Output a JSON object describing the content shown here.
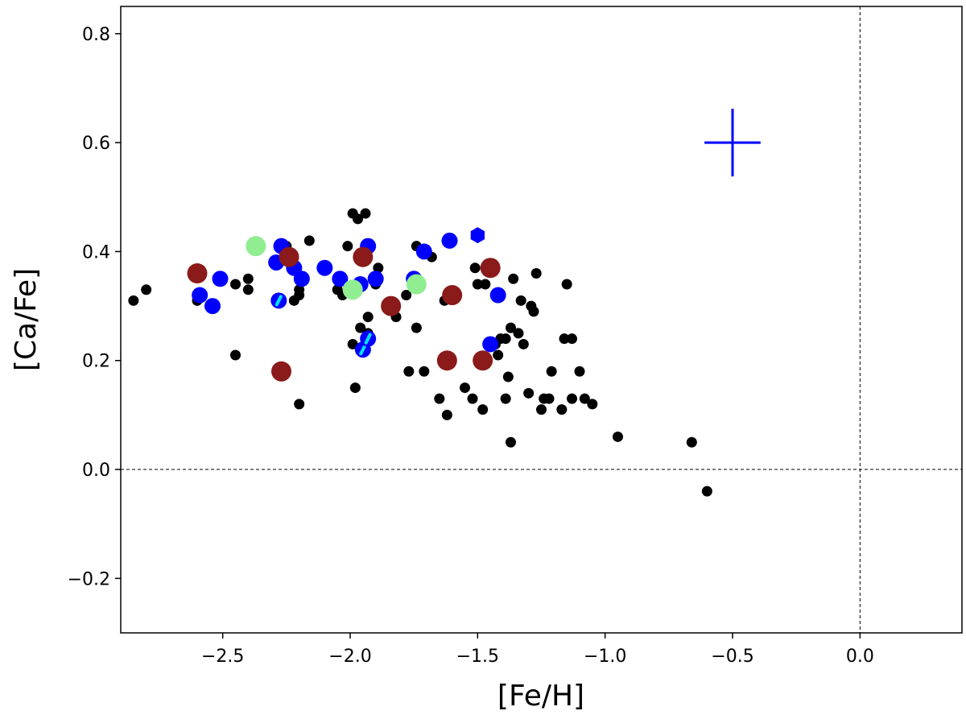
{
  "chart_data": {
    "type": "scatter",
    "title": "",
    "xlabel": "[Fe/H]",
    "ylabel": "[Ca/Fe]",
    "xlim": [
      -2.9,
      0.4
    ],
    "ylim": [
      -0.3,
      0.85
    ],
    "xticks": [
      -2.5,
      -2.0,
      -1.5,
      -1.0,
      -0.5,
      0.0
    ],
    "xtick_labels": [
      "−2.5",
      "−2.0",
      "−1.5",
      "−1.0",
      "−0.5",
      "0.0"
    ],
    "yticks": [
      -0.2,
      0.0,
      0.2,
      0.4,
      0.6,
      0.8
    ],
    "ytick_labels": [
      "−0.2",
      "0.0",
      "0.2",
      "0.4",
      "0.6",
      "0.8"
    ],
    "grid": false,
    "legend": "none",
    "reference_lines": {
      "x": 0.0,
      "y": 0.0,
      "style": "dashed"
    },
    "error_bar": {
      "x": -0.5,
      "y": 0.6,
      "xerr": 0.11,
      "yerr": 0.062,
      "color": "#0000ff"
    },
    "series": [
      {
        "color": "#000000",
        "marker": "circle-small",
        "points": [
          [
            -2.85,
            0.31
          ],
          [
            -2.8,
            0.33
          ],
          [
            -2.6,
            0.31
          ],
          [
            -2.45,
            0.34
          ],
          [
            -2.45,
            0.21
          ],
          [
            -2.4,
            0.35
          ],
          [
            -2.4,
            0.33
          ],
          [
            -2.25,
            0.41
          ],
          [
            -2.22,
            0.31
          ],
          [
            -2.2,
            0.33
          ],
          [
            -2.2,
            0.32
          ],
          [
            -2.2,
            0.12
          ],
          [
            -2.16,
            0.42
          ],
          [
            -2.05,
            0.33
          ],
          [
            -2.03,
            0.32
          ],
          [
            -2.01,
            0.41
          ],
          [
            -1.99,
            0.47
          ],
          [
            -1.97,
            0.46
          ],
          [
            -1.99,
            0.23
          ],
          [
            -1.98,
            0.15
          ],
          [
            -1.96,
            0.26
          ],
          [
            -1.94,
            0.47
          ],
          [
            -1.93,
            0.28
          ],
          [
            -1.93,
            0.25
          ],
          [
            -1.9,
            0.34
          ],
          [
            -1.89,
            0.37
          ],
          [
            -1.82,
            0.28
          ],
          [
            -1.78,
            0.32
          ],
          [
            -1.77,
            0.18
          ],
          [
            -1.74,
            0.41
          ],
          [
            -1.74,
            0.26
          ],
          [
            -1.71,
            0.18
          ],
          [
            -1.68,
            0.39
          ],
          [
            -1.65,
            0.13
          ],
          [
            -1.63,
            0.31
          ],
          [
            -1.62,
            0.1
          ],
          [
            -1.55,
            0.15
          ],
          [
            -1.52,
            0.13
          ],
          [
            -1.51,
            0.37
          ],
          [
            -1.5,
            0.34
          ],
          [
            -1.48,
            0.11
          ],
          [
            -1.47,
            0.34
          ],
          [
            -1.43,
            0.23
          ],
          [
            -1.42,
            0.21
          ],
          [
            -1.41,
            0.24
          ],
          [
            -1.39,
            0.13
          ],
          [
            -1.39,
            0.24
          ],
          [
            -1.38,
            0.17
          ],
          [
            -1.37,
            0.05
          ],
          [
            -1.37,
            0.26
          ],
          [
            -1.36,
            0.35
          ],
          [
            -1.34,
            0.25
          ],
          [
            -1.33,
            0.31
          ],
          [
            -1.32,
            0.23
          ],
          [
            -1.3,
            0.14
          ],
          [
            -1.29,
            0.3
          ],
          [
            -1.28,
            0.29
          ],
          [
            -1.27,
            0.36
          ],
          [
            -1.25,
            0.11
          ],
          [
            -1.24,
            0.13
          ],
          [
            -1.22,
            0.13
          ],
          [
            -1.21,
            0.18
          ],
          [
            -1.17,
            0.11
          ],
          [
            -1.16,
            0.24
          ],
          [
            -1.15,
            0.34
          ],
          [
            -1.13,
            0.24
          ],
          [
            -1.13,
            0.13
          ],
          [
            -1.1,
            0.18
          ],
          [
            -1.08,
            0.13
          ],
          [
            -1.05,
            0.12
          ],
          [
            -0.95,
            0.06
          ],
          [
            -0.66,
            0.05
          ],
          [
            -0.6,
            -0.04
          ]
        ]
      },
      {
        "color": "#0000ff",
        "marker": "circle",
        "points": [
          [
            -2.59,
            0.32
          ],
          [
            -2.54,
            0.3
          ],
          [
            -2.51,
            0.35
          ],
          [
            -2.29,
            0.38
          ],
          [
            -2.27,
            0.41
          ],
          [
            -2.22,
            0.37
          ],
          [
            -2.19,
            0.35
          ],
          [
            -2.1,
            0.37
          ],
          [
            -2.04,
            0.35
          ],
          [
            -1.96,
            0.34
          ],
          [
            -1.93,
            0.41
          ],
          [
            -1.9,
            0.35
          ],
          [
            -1.75,
            0.35
          ],
          [
            -1.71,
            0.4
          ],
          [
            -1.61,
            0.42
          ],
          [
            -1.42,
            0.32
          ],
          [
            -1.45,
            0.23
          ]
        ]
      },
      {
        "color": "#0000ff",
        "marker": "hexagon",
        "points": [
          [
            -1.5,
            0.43
          ]
        ]
      },
      {
        "color": "#0000ff",
        "marker": "circle-cyan-bar",
        "points": [
          [
            -2.28,
            0.31
          ],
          [
            -1.95,
            0.22
          ],
          [
            -1.93,
            0.24
          ]
        ]
      },
      {
        "color": "#8b1a1a",
        "marker": "circle-large",
        "points": [
          [
            -2.6,
            0.36
          ],
          [
            -2.24,
            0.39
          ],
          [
            -2.27,
            0.18
          ],
          [
            -1.95,
            0.39
          ],
          [
            -1.84,
            0.3
          ],
          [
            -1.6,
            0.32
          ],
          [
            -1.62,
            0.2
          ],
          [
            -1.48,
            0.2
          ],
          [
            -1.45,
            0.37
          ]
        ]
      },
      {
        "color": "#90ee90",
        "marker": "circle-large",
        "points": [
          [
            -2.37,
            0.41
          ],
          [
            -1.99,
            0.33
          ],
          [
            -1.74,
            0.34
          ]
        ]
      }
    ]
  }
}
